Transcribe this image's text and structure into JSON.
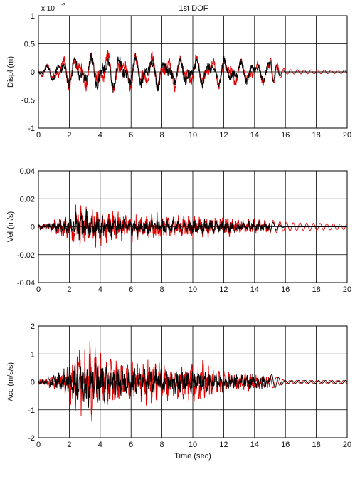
{
  "figure": {
    "title": "1st DOF",
    "exponent_label": "x 10",
    "exponent_power": "-3"
  },
  "chart_data": [
    {
      "type": "line",
      "title": "1st DOF",
      "xlabel": "",
      "ylabel": "Displ (m)",
      "xlim": [
        0,
        20
      ],
      "ylim": [
        -0.001,
        0.001
      ],
      "x_ticks": [
        "0",
        "2",
        "4",
        "6",
        "8",
        "10",
        "12",
        "14",
        "16",
        "18",
        "20"
      ],
      "y_ticks": [
        "-1",
        "-0.5",
        "0",
        "0.5",
        "1"
      ],
      "y_tick_values": [
        -0.001,
        -0.0005,
        0,
        0.0005,
        0.001
      ],
      "y_scale_note": "x 10^-3",
      "grid": true,
      "series": [
        {
          "color": "#e00000",
          "strong_until": 15,
          "envelope": [
            [
              0,
              8e-05
            ],
            [
              1,
              0.00025
            ],
            [
              2,
              0.00038
            ],
            [
              3,
              0.0004
            ],
            [
              4,
              0.00046
            ],
            [
              5,
              0.00042
            ],
            [
              6,
              0.0004
            ],
            [
              7,
              0.00038
            ],
            [
              8,
              0.0004
            ],
            [
              9,
              0.00036
            ],
            [
              10,
              0.00038
            ],
            [
              11,
              0.0003
            ],
            [
              12,
              0.00034
            ],
            [
              13,
              0.0003
            ],
            [
              14,
              0.00025
            ],
            [
              15,
              0.00025
            ],
            [
              16,
              4e-05
            ],
            [
              20,
              3e-05
            ]
          ]
        },
        {
          "color": "#000000",
          "strong_until": 15,
          "envelope": [
            [
              0,
              8e-05
            ],
            [
              1,
              0.0002
            ],
            [
              2,
              0.00032
            ],
            [
              3,
              0.00035
            ],
            [
              4,
              0.0004
            ],
            [
              5,
              0.00038
            ],
            [
              6,
              0.00036
            ],
            [
              7,
              0.00034
            ],
            [
              8,
              0.00036
            ],
            [
              9,
              0.00032
            ],
            [
              10,
              0.00034
            ],
            [
              11,
              0.00028
            ],
            [
              12,
              0.0003
            ],
            [
              13,
              0.00027
            ],
            [
              14,
              0.00022
            ],
            [
              15,
              0.00022
            ],
            [
              16,
              0.0
            ],
            [
              20,
              0.0
            ]
          ]
        }
      ]
    },
    {
      "type": "line",
      "xlabel": "",
      "ylabel": "Vel (m/s)",
      "xlim": [
        0,
        20
      ],
      "ylim": [
        -0.04,
        0.04
      ],
      "x_ticks": [
        "0",
        "2",
        "4",
        "6",
        "8",
        "10",
        "12",
        "14",
        "16",
        "18",
        "20"
      ],
      "y_ticks": [
        "-0.04",
        "-0.02",
        "0",
        "0.02",
        "0.04"
      ],
      "y_tick_values": [
        -0.04,
        -0.02,
        0,
        0.02,
        0.04
      ],
      "grid": true,
      "series": [
        {
          "color": "#e00000",
          "strong_until": 15,
          "envelope": [
            [
              0,
              0.002
            ],
            [
              1,
              0.006
            ],
            [
              2,
              0.012
            ],
            [
              2.8,
              0.022
            ],
            [
              3.5,
              0.018
            ],
            [
              4,
              0.016
            ],
            [
              5,
              0.014
            ],
            [
              6,
              0.012
            ],
            [
              7,
              0.01
            ],
            [
              8,
              0.011
            ],
            [
              9,
              0.009
            ],
            [
              10,
              0.01
            ],
            [
              11,
              0.008
            ],
            [
              12,
              0.009
            ],
            [
              13,
              0.007
            ],
            [
              14,
              0.006
            ],
            [
              15,
              0.005
            ],
            [
              16,
              0.003
            ],
            [
              20,
              0.002
            ]
          ]
        },
        {
          "color": "#000000",
          "strong_until": 15,
          "envelope": [
            [
              0,
              0.002
            ],
            [
              1,
              0.004
            ],
            [
              2,
              0.008
            ],
            [
              2.8,
              0.014
            ],
            [
              3.5,
              0.012
            ],
            [
              4,
              0.01
            ],
            [
              5,
              0.009
            ],
            [
              6,
              0.008
            ],
            [
              7,
              0.007
            ],
            [
              8,
              0.007
            ],
            [
              9,
              0.006
            ],
            [
              10,
              0.007
            ],
            [
              11,
              0.006
            ],
            [
              12,
              0.006
            ],
            [
              13,
              0.005
            ],
            [
              14,
              0.005
            ],
            [
              15,
              0.004
            ],
            [
              16,
              0.0
            ],
            [
              20,
              0.0
            ]
          ]
        }
      ]
    },
    {
      "type": "line",
      "xlabel": "Time (sec)",
      "ylabel": "Acc (m/s/s)",
      "xlim": [
        0,
        20
      ],
      "ylim": [
        -2,
        2
      ],
      "x_ticks": [
        "0",
        "2",
        "4",
        "6",
        "8",
        "10",
        "12",
        "14",
        "16",
        "18",
        "20"
      ],
      "y_ticks": [
        "-2",
        "-1",
        "0",
        "1",
        "2"
      ],
      "y_tick_values": [
        -2,
        -1,
        0,
        1,
        2
      ],
      "grid": true,
      "series": [
        {
          "color": "#e00000",
          "strong_until": 15,
          "envelope": [
            [
              0,
              0.1
            ],
            [
              1,
              0.3
            ],
            [
              2,
              0.8
            ],
            [
              2.6,
              1.4
            ],
            [
              3.2,
              1.8
            ],
            [
              3.8,
              1.3
            ],
            [
              4.5,
              1.1
            ],
            [
              5.5,
              1.0
            ],
            [
              6.5,
              0.8
            ],
            [
              7.5,
              1.1
            ],
            [
              8.5,
              0.7
            ],
            [
              9.5,
              0.8
            ],
            [
              10.5,
              0.9
            ],
            [
              11.5,
              0.5
            ],
            [
              12.5,
              0.5
            ],
            [
              13.5,
              0.35
            ],
            [
              14.5,
              0.3
            ],
            [
              15,
              0.25
            ],
            [
              16,
              0.05
            ],
            [
              20,
              0.05
            ]
          ]
        },
        {
          "color": "#000000",
          "strong_until": 15,
          "envelope": [
            [
              0,
              0.1
            ],
            [
              1,
              0.3
            ],
            [
              2,
              0.6
            ],
            [
              2.6,
              1.0
            ],
            [
              3.2,
              1.1
            ],
            [
              3.8,
              0.9
            ],
            [
              4.5,
              0.8
            ],
            [
              5.5,
              0.7
            ],
            [
              6.5,
              0.6
            ],
            [
              7.5,
              0.6
            ],
            [
              8.5,
              0.5
            ],
            [
              9.5,
              0.5
            ],
            [
              10.5,
              0.5
            ],
            [
              11.5,
              0.4
            ],
            [
              12.5,
              0.4
            ],
            [
              13.5,
              0.3
            ],
            [
              14.5,
              0.35
            ],
            [
              15,
              0.3
            ],
            [
              16,
              0.05
            ],
            [
              20,
              0.05
            ]
          ]
        }
      ]
    }
  ]
}
